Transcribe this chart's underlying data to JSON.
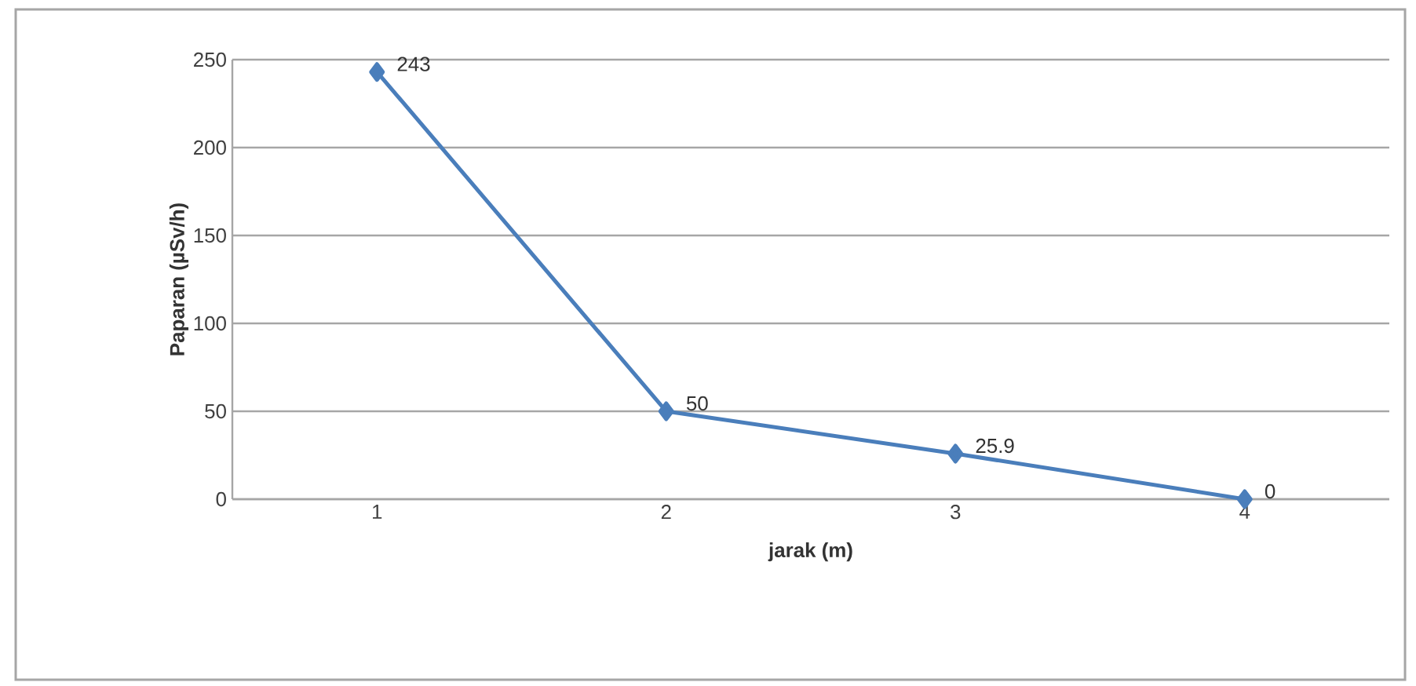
{
  "chart_data": {
    "type": "line",
    "xlabel": "jarak (m)",
    "ylabel": "Paparan (µSv/h)",
    "categories": [
      "1",
      "2",
      "3",
      "4"
    ],
    "series": [
      {
        "color": "#4a7ebb",
        "values": [
          243,
          50,
          25.9,
          0
        ]
      }
    ],
    "ylim": [
      0,
      250
    ],
    "yticks": [
      0,
      50,
      100,
      150,
      200,
      250
    ],
    "grid": "y",
    "marker": "diamond",
    "line_style": "solid",
    "data_labels": true
  }
}
